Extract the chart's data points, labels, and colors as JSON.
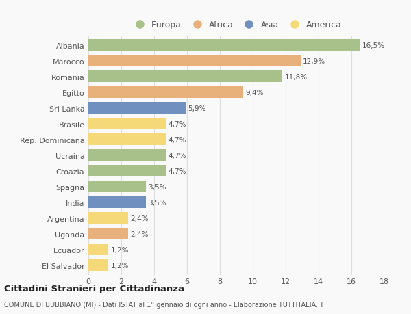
{
  "countries": [
    "Albania",
    "Marocco",
    "Romania",
    "Egitto",
    "Sri Lanka",
    "Brasile",
    "Rep. Dominicana",
    "Ucraina",
    "Croazia",
    "Spagna",
    "India",
    "Argentina",
    "Uganda",
    "Ecuador",
    "El Salvador"
  ],
  "values": [
    16.5,
    12.9,
    11.8,
    9.4,
    5.9,
    4.7,
    4.7,
    4.7,
    4.7,
    3.5,
    3.5,
    2.4,
    2.4,
    1.2,
    1.2
  ],
  "labels": [
    "16,5%",
    "12,9%",
    "11,8%",
    "9,4%",
    "5,9%",
    "4,7%",
    "4,7%",
    "4,7%",
    "4,7%",
    "3,5%",
    "3,5%",
    "2,4%",
    "2,4%",
    "1,2%",
    "1,2%"
  ],
  "continents": [
    "Europa",
    "Africa",
    "Europa",
    "Africa",
    "Asia",
    "America",
    "America",
    "Europa",
    "Europa",
    "Europa",
    "Asia",
    "America",
    "Africa",
    "America",
    "America"
  ],
  "colors": {
    "Europa": "#a8c08a",
    "Africa": "#e8b07a",
    "Asia": "#7090c0",
    "America": "#f5d878"
  },
  "legend_order": [
    "Europa",
    "Africa",
    "Asia",
    "America"
  ],
  "xlim": [
    0,
    18
  ],
  "xticks": [
    0,
    2,
    4,
    6,
    8,
    10,
    12,
    14,
    16,
    18
  ],
  "title": "Cittadini Stranieri per Cittadinanza",
  "subtitle": "COMUNE DI BUBBIANO (MI) - Dati ISTAT al 1° gennaio di ogni anno - Elaborazione TUTTITALIA.IT",
  "background_color": "#f9f9f9",
  "bar_height": 0.72,
  "grid_color": "#dddddd",
  "text_color": "#555555",
  "label_fontsize": 7.5,
  "ytick_fontsize": 8.0,
  "xtick_fontsize": 8.0,
  "legend_fontsize": 9.0
}
